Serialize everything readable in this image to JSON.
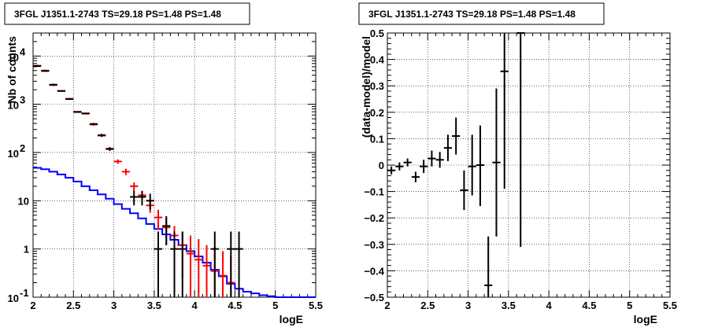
{
  "chart_data": [
    {
      "type": "line",
      "title": "3FGL J1351.1-2743 TS=29.18 PS=1.48 PS=1.48",
      "xlabel": "logE",
      "ylabel": "Nb of counts",
      "xlim": [
        2,
        5.5
      ],
      "ylim": [
        0.1,
        30000
      ],
      "yscale": "log",
      "grid": true,
      "x_ticks": [
        "2",
        "2.5",
        "3",
        "3.5",
        "4",
        "4.5",
        "5",
        "5.5"
      ],
      "y_ticks": [
        {
          "value": 0.1,
          "label": "10",
          "exp": "-1"
        },
        {
          "value": 1,
          "label": "1",
          "exp": ""
        },
        {
          "value": 10,
          "label": "10",
          "exp": ""
        },
        {
          "value": 100,
          "label": "10",
          "exp": "2"
        },
        {
          "value": 1000,
          "label": "10",
          "exp": "3"
        },
        {
          "value": 10000,
          "label": "10",
          "exp": "4"
        }
      ],
      "bin_width": 0.1,
      "series": [
        {
          "color": "#0000ff",
          "style": "step",
          "x": [
            2.05,
            2.15,
            2.25,
            2.35,
            2.45,
            2.55,
            2.65,
            2.75,
            2.85,
            2.95,
            3.05,
            3.15,
            3.25,
            3.35,
            3.45,
            3.55,
            3.65,
            3.75,
            3.85,
            3.95,
            4.05,
            4.15,
            4.25,
            4.35,
            4.45,
            4.55,
            4.65,
            4.75,
            4.85,
            4.95,
            5.05,
            5.15,
            5.25,
            5.35,
            5.45
          ],
          "y": [
            48,
            45,
            40,
            35,
            30,
            25,
            20,
            16.5,
            13.5,
            11,
            8.5,
            6.8,
            5.5,
            4.3,
            3.3,
            2.6,
            2.0,
            1.55,
            1.2,
            0.9,
            0.7,
            0.52,
            0.37,
            0.27,
            0.19,
            0.15,
            0.13,
            0.12,
            0.11,
            0.105,
            0.1,
            0.1,
            0.1,
            0.1,
            0.1
          ]
        },
        {
          "color": "#ff0000",
          "style": "errorbar",
          "x": [
            2.05,
            2.15,
            2.25,
            2.35,
            2.45,
            2.55,
            2.65,
            2.75,
            2.85,
            2.95,
            3.05,
            3.15,
            3.25,
            3.35,
            3.45,
            3.55,
            3.65,
            3.75,
            3.85,
            3.95,
            4.05,
            4.15,
            4.25,
            4.35,
            4.45
          ],
          "y": [
            6300,
            5000,
            2500,
            1900,
            1300,
            700,
            650,
            380,
            230,
            120,
            65,
            40,
            20,
            13,
            8,
            4.5,
            2.8,
            1.9,
            1.2,
            0.8,
            0.6,
            0.45,
            0.35,
            0.28,
            0.2
          ],
          "ylow": [
            6000,
            4800,
            2400,
            1850,
            1250,
            680,
            630,
            360,
            215,
            110,
            58,
            34,
            16,
            10,
            5.6,
            2.5,
            1.2,
            0.8,
            0.25,
            0.1,
            0.1,
            0.1,
            0.1,
            0.1,
            0.1
          ],
          "yhigh": [
            6600,
            5200,
            2600,
            1950,
            1350,
            720,
            670,
            400,
            245,
            130,
            72,
            46,
            24,
            16,
            10.5,
            6.5,
            4.4,
            3.0,
            2.3,
            1.9,
            1.6,
            1.2,
            1.1,
            0.9,
            0.7
          ]
        },
        {
          "color": "#000000",
          "style": "errorbar",
          "x": [
            2.05,
            2.15,
            2.25,
            2.35,
            2.45,
            2.55,
            2.65,
            2.75,
            2.85,
            2.95,
            3.25,
            3.35,
            3.45,
            3.55,
            3.65,
            3.75,
            3.85,
            4.25,
            4.45,
            4.55
          ],
          "y": [
            6200,
            4900,
            2550,
            1880,
            1280,
            690,
            640,
            390,
            225,
            118,
            12,
            12,
            10,
            1,
            3,
            1,
            1,
            1,
            1,
            1
          ],
          "ylow": [
            5950,
            4700,
            2450,
            1830,
            1240,
            670,
            620,
            370,
            210,
            108,
            8,
            8,
            6.5,
            0.1,
            1.2,
            0.1,
            0.1,
            0.1,
            0.1,
            0.1
          ],
          "yhigh": [
            6450,
            5100,
            2650,
            1930,
            1320,
            710,
            660,
            410,
            240,
            128,
            16,
            16,
            14,
            2.3,
            4.8,
            2.3,
            2.3,
            2.3,
            2.3,
            2.3
          ]
        }
      ]
    },
    {
      "type": "scatter",
      "title": "3FGL J1351.1-2743 TS=29.18 PS=1.48 PS=1.48",
      "xlabel": "logE",
      "ylabel": "(data-model)/model",
      "xlim": [
        2,
        5.5
      ],
      "ylim": [
        -0.5,
        0.5
      ],
      "grid": true,
      "x_ticks": [
        "2",
        "2.5",
        "3",
        "3.5",
        "4",
        "4.5",
        "5",
        "5.5"
      ],
      "y_ticks": [
        "−0.5",
        "−0.4",
        "−0.3",
        "−0.2",
        "−0.1",
        "0",
        "0.1",
        "0.2",
        "0.3",
        "0.4",
        "0.5"
      ],
      "bin_width": 0.1,
      "series": [
        {
          "color": "#000000",
          "style": "errorbar",
          "x": [
            2.05,
            2.15,
            2.25,
            2.35,
            2.45,
            2.55,
            2.65,
            2.75,
            2.85,
            2.95,
            3.05,
            3.15,
            3.35,
            3.45,
            3.65,
            3.25
          ],
          "y": [
            -0.02,
            -0.005,
            0.01,
            -0.045,
            -0.005,
            0.025,
            0.02,
            0.065,
            0.11,
            -0.095,
            -0.005,
            0.0,
            0.01,
            0.355,
            0.5,
            -0.455
          ],
          "ylow": [
            -0.035,
            -0.02,
            -0.005,
            -0.065,
            -0.03,
            -0.005,
            -0.01,
            0.015,
            0.04,
            -0.17,
            -0.115,
            -0.155,
            -0.27,
            -0.09,
            -0.31,
            -0.5
          ],
          "yhigh": [
            -0.005,
            0.01,
            0.025,
            -0.025,
            0.02,
            0.055,
            0.05,
            0.115,
            0.18,
            -0.02,
            0.115,
            0.15,
            0.29,
            0.5,
            0.5,
            -0.27
          ]
        }
      ]
    }
  ]
}
